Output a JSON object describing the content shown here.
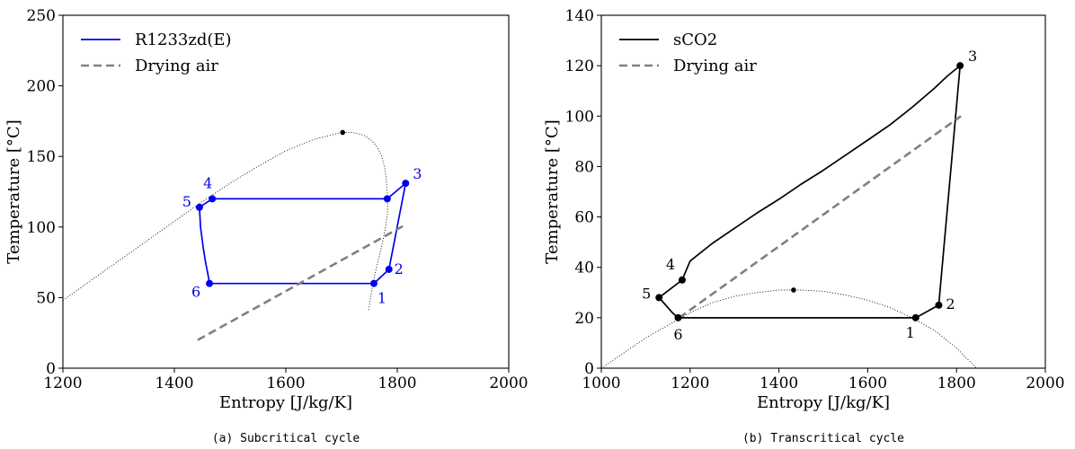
{
  "chart_data": [
    {
      "type": "line",
      "caption": "(a) Subcritical cycle",
      "xlabel": "Entropy [J/kg/K]",
      "ylabel": "Temperature [°C]",
      "xlim": [
        1200,
        2000
      ],
      "ylim": [
        0,
        250
      ],
      "xticks": [
        "1200",
        "1400",
        "1600",
        "1800",
        "2000"
      ],
      "yticks": [
        "0",
        "50",
        "100",
        "150",
        "200",
        "250"
      ],
      "grid": false,
      "legend_position": "top-left",
      "colors": {
        "cycle": "#0000ee",
        "air": "#808080",
        "dome": "#000000"
      },
      "series": [
        {
          "name": "R1233zd(E)",
          "style": "solid",
          "x": [
            1758,
            1785,
            1815,
            1782,
            1468,
            1445,
            1447,
            1452,
            1456,
            1460,
            1463,
            1758
          ],
          "y": [
            60,
            70,
            131,
            120,
            120,
            114,
            100,
            85,
            75,
            67,
            60,
            60
          ]
        },
        {
          "name": "Drying air",
          "style": "dashed",
          "x": [
            1442,
            1812
          ],
          "y": [
            20,
            101
          ]
        },
        {
          "name": "",
          "style": "dotted",
          "x": [
            1200,
            1250,
            1300,
            1350,
            1400,
            1450,
            1500,
            1550,
            1600,
            1650,
            1700,
            1720,
            1740,
            1755,
            1765,
            1772,
            1777,
            1780,
            1782,
            1783,
            1782,
            1779,
            1775,
            1770,
            1765,
            1760,
            1755,
            1748
          ],
          "y": [
            48,
            62,
            76,
            90,
            104,
            118,
            131,
            143,
            154,
            162,
            167,
            167,
            165,
            161,
            156,
            150,
            143,
            135,
            125,
            115,
            108,
            100,
            92,
            83,
            75,
            67,
            57,
            40
          ]
        }
      ],
      "critical_point": {
        "x": 1702,
        "y": 167
      },
      "state_points": [
        {
          "label": "1",
          "x": 1758,
          "y": 60
        },
        {
          "label": "2",
          "x": 1785,
          "y": 70
        },
        {
          "label": "3",
          "x": 1815,
          "y": 131
        },
        {
          "label": "",
          "x": 1782,
          "y": 120
        },
        {
          "label": "4",
          "x": 1468,
          "y": 120
        },
        {
          "label": "5",
          "x": 1445,
          "y": 114
        },
        {
          "label": "6",
          "x": 1463,
          "y": 60
        }
      ]
    },
    {
      "type": "line",
      "caption": "(b) Transcritical cycle",
      "xlabel": "Entropy [J/kg/K]",
      "ylabel": "Temperature [°C]",
      "xlim": [
        1000,
        2000
      ],
      "ylim": [
        0,
        140
      ],
      "xticks": [
        "1000",
        "1200",
        "1400",
        "1600",
        "1800",
        "2000"
      ],
      "yticks": [
        "0",
        "20",
        "40",
        "60",
        "80",
        "100",
        "120",
        "140"
      ],
      "grid": false,
      "legend_position": "top-left",
      "colors": {
        "cycle": "#000000",
        "air": "#808080",
        "dome": "#000000"
      },
      "series": [
        {
          "name": "sCO2",
          "style": "solid",
          "x": [
            1708,
            1760,
            1808,
            1780,
            1750,
            1720,
            1700,
            1650,
            1600,
            1550,
            1500,
            1450,
            1400,
            1350,
            1300,
            1250,
            1200,
            1182,
            1130,
            1140,
            1150,
            1160,
            1173,
            1708
          ],
          "y": [
            20,
            25,
            120,
            116,
            111,
            106.5,
            103.5,
            96.5,
            90.5,
            84.5,
            78.5,
            73,
            67,
            61.5,
            55.5,
            49.5,
            42.5,
            35,
            28,
            26,
            24,
            22,
            20,
            20
          ]
        },
        {
          "name": "Drying air",
          "style": "dashed",
          "x": [
            1175,
            1810
          ],
          "y": [
            20,
            100
          ]
        },
        {
          "name": "",
          "style": "dotted",
          "x": [
            1000,
            1050,
            1100,
            1150,
            1200,
            1250,
            1300,
            1350,
            1400,
            1450,
            1500,
            1550,
            1600,
            1650,
            1700,
            1750,
            1800,
            1845
          ],
          "y": [
            0,
            6,
            12,
            17,
            22,
            26,
            28.5,
            30,
            31,
            31,
            30.5,
            29,
            27,
            24,
            20,
            15,
            8,
            0
          ]
        }
      ],
      "critical_point": {
        "x": 1433,
        "y": 31
      },
      "state_points": [
        {
          "label": "1",
          "x": 1708,
          "y": 20
        },
        {
          "label": "2",
          "x": 1760,
          "y": 25
        },
        {
          "label": "3",
          "x": 1808,
          "y": 120
        },
        {
          "label": "4",
          "x": 1182,
          "y": 35
        },
        {
          "label": "5",
          "x": 1130,
          "y": 28
        },
        {
          "label": "6",
          "x": 1173,
          "y": 20
        }
      ]
    }
  ]
}
